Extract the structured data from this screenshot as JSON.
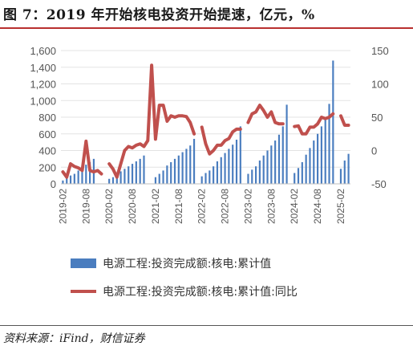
{
  "title": "图 7：2019 年开始核电投资开始提速，亿元，%",
  "source": "资料来源：iFind，财信证券",
  "colors": {
    "bar": "#4a7dbf",
    "line": "#c0504d",
    "accent": "#b9302f"
  },
  "chart_data": {
    "type": "bar+line",
    "ylim_left": [
      0,
      1600
    ],
    "yticks_left": [
      "0",
      "200",
      "400",
      "600",
      "800",
      "1,000",
      "1,200",
      "1,400",
      "1,600"
    ],
    "ylim_right": [
      -50,
      150
    ],
    "yticks_right": [
      "-50",
      "0",
      "50",
      "100",
      "150"
    ],
    "x_tick_labels": [
      "2019-02",
      "2019-08",
      "2020-02",
      "2020-08",
      "2021-02",
      "2021-08",
      "2022-02",
      "2022-08",
      "2023-02",
      "2023-08",
      "2024-02",
      "2024-08",
      "2025-02"
    ],
    "months": [
      "2019-02",
      "2019-03",
      "2019-04",
      "2019-05",
      "2019-06",
      "2019-07",
      "2019-08",
      "2019-09",
      "2019-10",
      "2019-11",
      "2019-12",
      "2020-01",
      "2020-02",
      "2020-03",
      "2020-04",
      "2020-05",
      "2020-06",
      "2020-07",
      "2020-08",
      "2020-09",
      "2020-10",
      "2020-11",
      "2020-12",
      "2021-01",
      "2021-02",
      "2021-03",
      "2021-04",
      "2021-05",
      "2021-06",
      "2021-07",
      "2021-08",
      "2021-09",
      "2021-10",
      "2021-11",
      "2021-12",
      "2022-01",
      "2022-02",
      "2022-03",
      "2022-04",
      "2022-05",
      "2022-06",
      "2022-07",
      "2022-08",
      "2022-09",
      "2022-10",
      "2022-11",
      "2022-12",
      "2023-01",
      "2023-02",
      "2023-03",
      "2023-04",
      "2023-05",
      "2023-06",
      "2023-07",
      "2023-08",
      "2023-09",
      "2023-10",
      "2023-11",
      "2023-12",
      "2024-01",
      "2024-02",
      "2024-03",
      "2024-04",
      "2024-05",
      "2024-06",
      "2024-07",
      "2024-08",
      "2024-09",
      "2024-10",
      "2024-11",
      "2024-12",
      "2025-01",
      "2025-02",
      "2025-03",
      "2025-04"
    ],
    "series": [
      {
        "name": "电源工程:投资完成额:核电:累计值",
        "type": "bar",
        "values": [
          40,
          80,
          100,
          120,
          160,
          200,
          230,
          260,
          300,
          null,
          null,
          null,
          60,
          80,
          110,
          150,
          180,
          210,
          240,
          270,
          300,
          340,
          null,
          null,
          80,
          120,
          160,
          220,
          260,
          300,
          340,
          380,
          420,
          460,
          540,
          null,
          90,
          130,
          160,
          210,
          270,
          320,
          370,
          420,
          470,
          530,
          690,
          null,
          120,
          170,
          210,
          280,
          340,
          400,
          460,
          520,
          590,
          690,
          950,
          null,
          130,
          190,
          260,
          350,
          430,
          520,
          600,
          690,
          800,
          960,
          1480,
          null,
          180,
          280,
          360
        ]
      },
      {
        "name": "电源工程:投资完成额:核电:累计值:同比",
        "type": "line",
        "values": [
          -32,
          -40,
          -20,
          -24,
          -26,
          -30,
          14,
          -30,
          -32,
          -30,
          -35,
          null,
          -20,
          -28,
          -40,
          -20,
          0,
          6,
          4,
          8,
          10,
          6,
          15,
          128,
          17,
          68,
          68,
          44,
          52,
          50,
          52,
          52,
          51,
          42,
          25,
          null,
          35,
          10,
          -5,
          0,
          8,
          8,
          15,
          18,
          28,
          32,
          32,
          null,
          42,
          55,
          58,
          68,
          60,
          50,
          58,
          42,
          40,
          40,
          null,
          null,
          36,
          37,
          25,
          25,
          35,
          35,
          40,
          50,
          48,
          50,
          55,
          null,
          52,
          38,
          38
        ]
      }
    ]
  }
}
